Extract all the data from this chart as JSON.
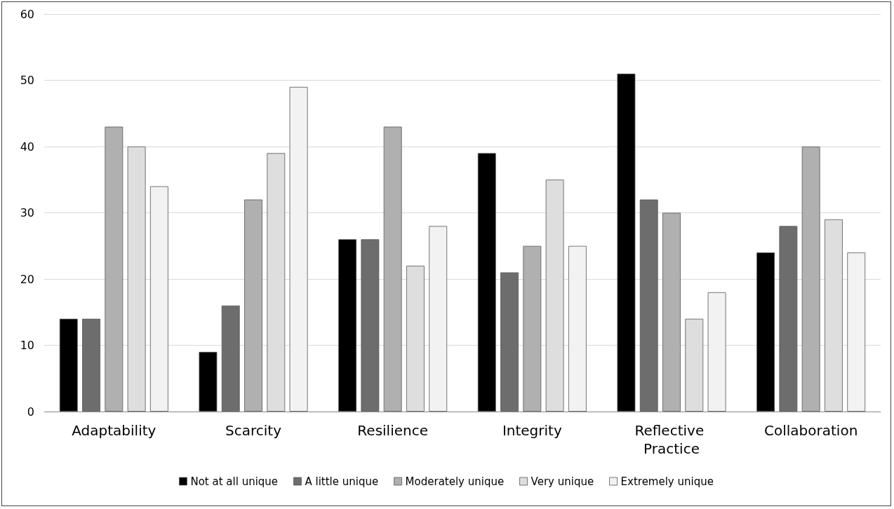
{
  "chart_data": {
    "type": "bar",
    "categories": [
      "Adaptability",
      "Scarcity",
      "Resilience",
      "Integrity",
      "Reflective Practice",
      "Collaboration"
    ],
    "series": [
      {
        "name": "Not at all unique",
        "color": "#000000",
        "values": [
          14,
          9,
          26,
          39,
          51,
          24
        ]
      },
      {
        "name": "A little unique",
        "color": "#6d6d6d",
        "values": [
          14,
          16,
          26,
          21,
          32,
          28
        ]
      },
      {
        "name": "Moderately unique",
        "color": "#b0b0b0",
        "values": [
          43,
          32,
          43,
          25,
          30,
          40
        ]
      },
      {
        "name": "Very unique",
        "color": "#dedede",
        "values": [
          40,
          39,
          22,
          35,
          14,
          29
        ]
      },
      {
        "name": "Extremely unique",
        "color": "#f2f2f2",
        "values": [
          34,
          49,
          28,
          25,
          18,
          24
        ]
      }
    ],
    "ylim": [
      0,
      60
    ],
    "yticks": [
      0,
      10,
      20,
      30,
      40,
      50,
      60
    ],
    "grid": "y",
    "legend": "bottom"
  }
}
